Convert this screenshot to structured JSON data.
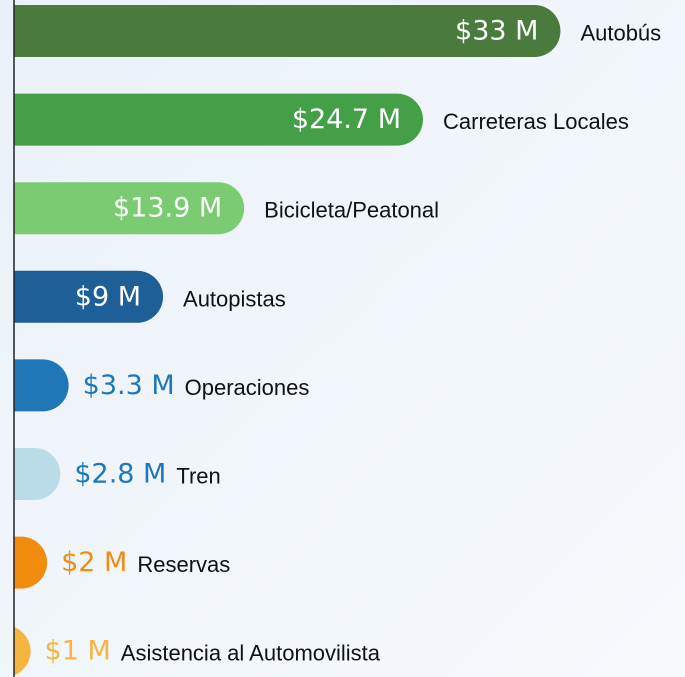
{
  "chart_data": {
    "type": "bar",
    "orientation": "horizontal",
    "categories": [
      "Autobús",
      "Carreteras Locales",
      "Bicicleta/Peatonal",
      "Autopistas",
      "Operaciones",
      "Tren",
      "Reservas",
      "Asistencia al Automovilista"
    ],
    "values": [
      33,
      24.7,
      13.9,
      9,
      3.3,
      2.8,
      2,
      1
    ],
    "value_labels": [
      "$33 M",
      "$24.7 M",
      "$13.9 M",
      "$9 M",
      "$3.3 M",
      "$2.8 M",
      "$2 M",
      "$1 M"
    ],
    "colors": [
      "#4a7a3c",
      "#44a047",
      "#7bcb72",
      "#1d5f96",
      "#1f77b8",
      "#b9dce8",
      "#f28c0f",
      "#f5b53e"
    ],
    "label_colors": [
      "#ffffff",
      "#ffffff",
      "#ffffff",
      "#ffffff",
      "#1f77b8",
      "#1f77b8",
      "#f28c0f",
      "#f5b53e"
    ],
    "xlim": [
      0,
      34
    ]
  }
}
